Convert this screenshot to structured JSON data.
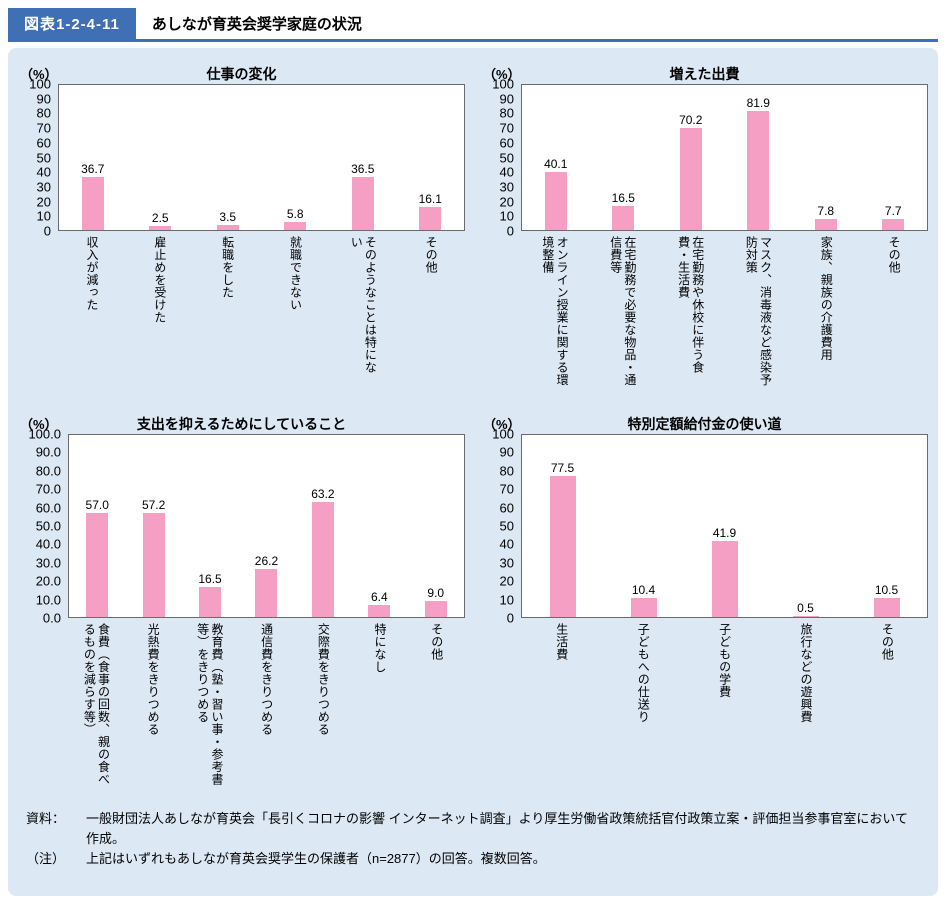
{
  "colors": {
    "header_blue": "#3f6fb5",
    "panel_bg": "#dce8f4",
    "bar_pink": "#f49fc3",
    "plot_border": "#6b6b6b"
  },
  "header": {
    "figure_label": "図表1-2-4-11",
    "title": "あしなが育英会奨学家庭の状況"
  },
  "chart_data": [
    {
      "type": "bar",
      "title": "仕事の変化",
      "unit": "（%）",
      "xlabel": "",
      "ylabel": "%",
      "ylim": [
        0,
        100
      ],
      "y_tick_step": 10,
      "y_tick_format": "int",
      "grid": false,
      "legend": false,
      "categories": [
        "収入が減った",
        "雇止めを受けた",
        "転職をした",
        "就職できない",
        "そのようなことは特にない",
        "その他"
      ],
      "values": [
        36.7,
        2.5,
        3.5,
        5.8,
        36.5,
        16.1
      ]
    },
    {
      "type": "bar",
      "title": "増えた出費",
      "unit": "（%）",
      "xlabel": "",
      "ylabel": "%",
      "ylim": [
        0,
        100
      ],
      "y_tick_step": 10,
      "y_tick_format": "int",
      "grid": false,
      "legend": false,
      "categories": [
        "オンライン授業に関する環境整備",
        "在宅勤務で必要な物品・通信費等",
        "在宅勤務や休校に伴う食費・生活費",
        "マスク、消毒液など感染予防対策",
        "家族、親族の介護費用",
        "その他"
      ],
      "values": [
        40.1,
        16.5,
        70.2,
        81.9,
        7.8,
        7.7
      ]
    },
    {
      "type": "bar",
      "title": "支出を抑えるためにしていること",
      "unit": "（%）",
      "xlabel": "",
      "ylabel": "%",
      "ylim": [
        0,
        100
      ],
      "y_tick_step": 10,
      "y_tick_format": "one_decimal",
      "grid": false,
      "legend": false,
      "categories": [
        "食費（食事の回数、親の食べるものを減らす等）",
        "光熱費をきりつめる",
        "教育費（塾・習い事・参考書等）をきりつめる",
        "通信費をきりつめる",
        "交際費をきりつめる",
        "特になし",
        "その他"
      ],
      "values": [
        57.0,
        57.2,
        16.5,
        26.2,
        63.2,
        6.4,
        9.0
      ]
    },
    {
      "type": "bar",
      "title": "特別定額給付金の使い道",
      "unit": "（%）",
      "xlabel": "",
      "ylabel": "%",
      "ylim": [
        0,
        100
      ],
      "y_tick_step": 10,
      "y_tick_format": "int",
      "grid": false,
      "legend": false,
      "categories": [
        "生活費",
        "子どもへの仕送り",
        "子どもの学費",
        "旅行などの遊興費",
        "その他"
      ],
      "values": [
        77.5,
        10.4,
        41.9,
        0.5,
        10.5
      ]
    }
  ],
  "footer": {
    "source_label": "資料：",
    "source_text": "一般財団法人あしなが育英会「長引くコロナの影響 インターネット調査」より厚生労働省政策統括官付政策立案・評価担当参事官室において作成。",
    "note_label": "（注）",
    "note_text": "上記はいずれもあしなが育英会奨学生の保護者（n=2877）の回答。複数回答。"
  }
}
